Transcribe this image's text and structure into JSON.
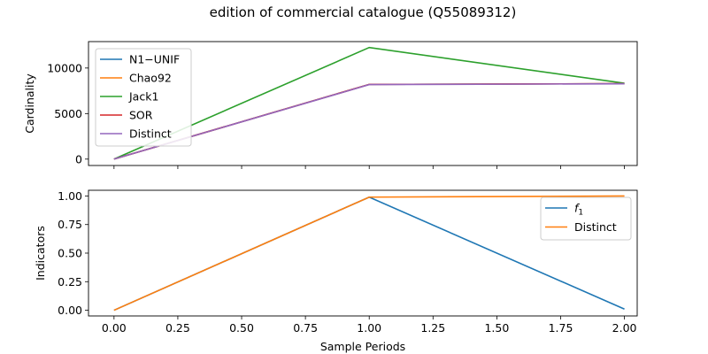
{
  "title": "edition of commercial catalogue (Q55089312)",
  "chart_data": [
    {
      "type": "line",
      "ylabel": "Cardinality",
      "xlabel": "",
      "x": [
        0,
        1,
        2
      ],
      "xlim": [
        -0.1,
        2.05
      ],
      "ylim": [
        -700,
        12900
      ],
      "xticks": [
        0.0,
        0.25,
        0.5,
        0.75,
        1.0,
        1.25,
        1.5,
        1.75,
        2.0
      ],
      "yticks": [
        0,
        5000,
        10000
      ],
      "show_xtick_labels": false,
      "legend_loc": "upper-left",
      "series": [
        {
          "name": "N1−UNIF",
          "color": "#1f77b4",
          "values": [
            0,
            8200,
            8280
          ]
        },
        {
          "name": "Chao92",
          "color": "#ff7f0e",
          "values": [
            0,
            8200,
            8280
          ]
        },
        {
          "name": "Jack1",
          "color": "#2ca02c",
          "values": [
            0,
            12250,
            8330
          ]
        },
        {
          "name": "SOR",
          "color": "#d62728",
          "values": [
            0,
            8200,
            8280
          ]
        },
        {
          "name": "Distinct",
          "color": "#9467bd",
          "values": [
            0,
            8180,
            8270
          ]
        }
      ]
    },
    {
      "type": "line",
      "ylabel": "Indicators",
      "xlabel": "Sample Periods",
      "x": [
        0,
        1,
        2
      ],
      "xlim": [
        -0.1,
        2.05
      ],
      "ylim": [
        -0.05,
        1.05
      ],
      "xticks": [
        0.0,
        0.25,
        0.5,
        0.75,
        1.0,
        1.25,
        1.5,
        1.75,
        2.0
      ],
      "yticks": [
        0.0,
        0.25,
        0.5,
        0.75,
        1.0
      ],
      "show_xtick_labels": true,
      "legend_loc": "upper-right",
      "series": [
        {
          "name": "f1",
          "color": "#1f77b4",
          "values": [
            0,
            0.99,
            0.01
          ]
        },
        {
          "name": "Distinct",
          "color": "#ff7f0e",
          "values": [
            0,
            0.99,
            1.0
          ]
        }
      ]
    }
  ]
}
